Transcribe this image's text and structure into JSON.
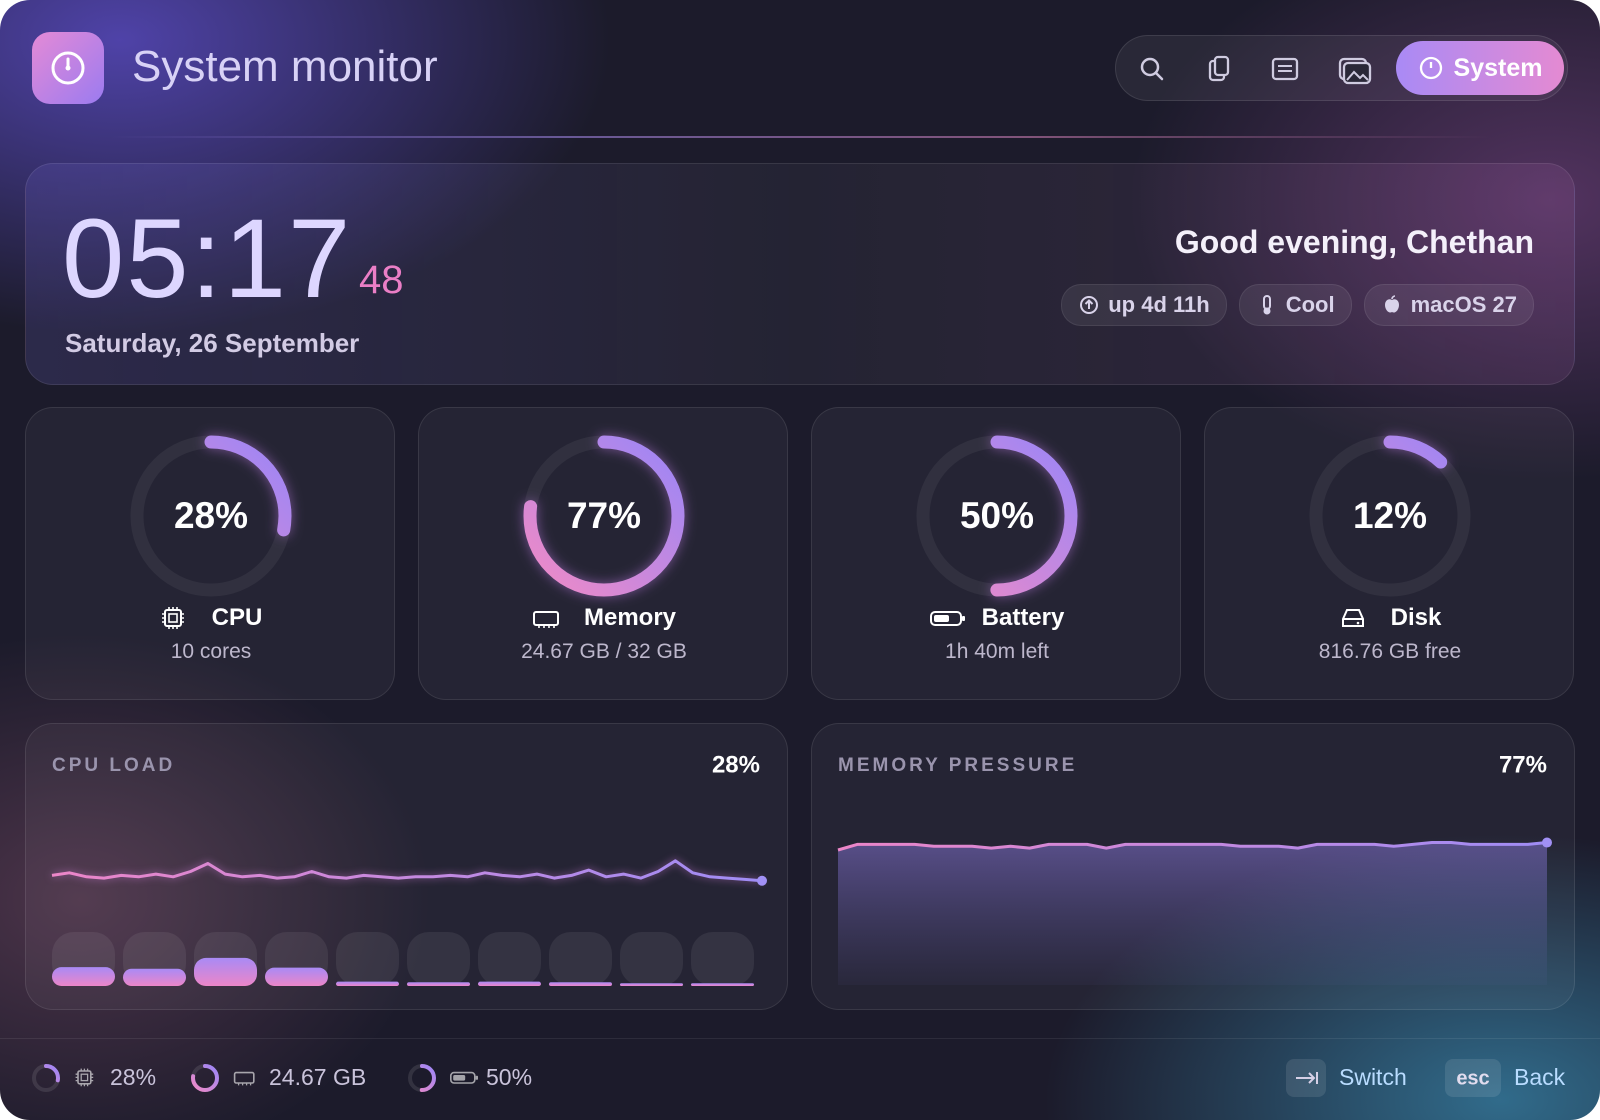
{
  "header": {
    "title": "System monitor",
    "active_tab": "System"
  },
  "clock": {
    "time": "05:17",
    "seconds": "48",
    "date": "Saturday, 26 September",
    "greeting": "Good evening, Chethan",
    "chips": [
      "up 4d 11h",
      "Cool",
      "macOS 27"
    ]
  },
  "gauges": [
    {
      "percent": 28,
      "percent_label": "28%",
      "name": "CPU",
      "detail": "10 cores"
    },
    {
      "percent": 77,
      "percent_label": "77%",
      "name": "Memory",
      "detail": "24.67 GB / 32 GB"
    },
    {
      "percent": 50,
      "percent_label": "50%",
      "name": "Battery",
      "detail": "1h 40m left"
    },
    {
      "percent": 12,
      "percent_label": "12%",
      "name": "Disk",
      "detail": "816.76 GB free"
    }
  ],
  "cpu_load": {
    "title": "CPU LOAD",
    "value_label": "28%",
    "history": [
      32,
      34,
      31,
      30,
      32,
      31,
      33,
      31,
      35,
      41,
      33,
      31,
      32,
      30,
      31,
      35,
      31,
      30,
      32,
      31,
      30,
      31,
      31,
      32,
      31,
      34,
      32,
      31,
      33,
      30,
      32,
      36,
      31,
      33,
      30,
      35,
      43,
      34,
      31,
      30,
      29,
      28
    ],
    "cores": [
      35,
      32,
      52,
      34,
      8,
      7,
      8,
      7,
      5,
      5
    ]
  },
  "memory_pressure": {
    "title": "MEMORY PRESSURE",
    "value_label": "77%",
    "history": [
      73,
      76,
      76,
      76,
      76,
      75,
      75,
      75,
      74,
      75,
      74,
      76,
      76,
      76,
      74,
      76,
      76,
      76,
      76,
      76,
      76,
      75,
      75,
      75,
      74,
      76,
      76,
      76,
      76,
      75,
      76,
      77,
      77,
      76,
      76,
      76,
      76,
      77
    ]
  },
  "footer": {
    "stats": [
      "28%",
      "24.67 GB",
      "50%"
    ],
    "shortcuts": [
      {
        "label": "Switch"
      },
      {
        "key": "esc",
        "label": "Back"
      }
    ]
  }
}
